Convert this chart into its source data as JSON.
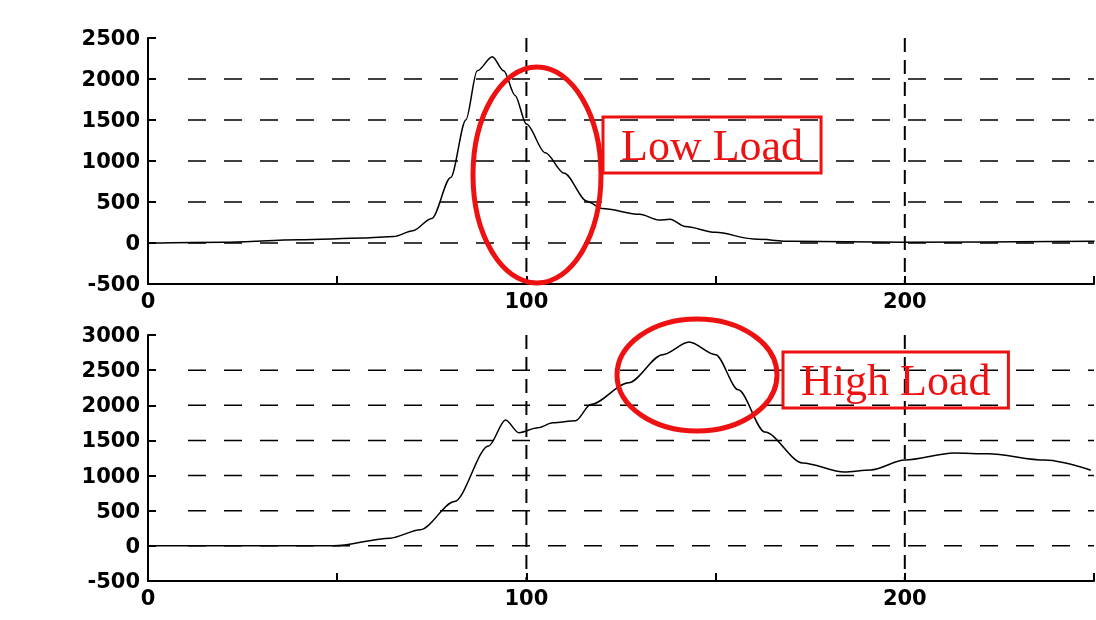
{
  "chart_data": [
    {
      "type": "line",
      "annotations": [
        "Low Load"
      ],
      "xlim": [
        0,
        250
      ],
      "xticks": [
        0,
        {
          "value": 50,
          "label": null
        },
        100,
        {
          "value": 150,
          "label": null
        },
        200,
        {
          "value": 250,
          "label": null
        }
      ],
      "ylim": [
        -500,
        2500
      ],
      "yticks": [
        -500,
        0,
        500,
        1000,
        1500,
        2000,
        2500
      ],
      "grid": true,
      "marker": "none",
      "line_style": "solid",
      "series": [
        {
          "color": "#000000",
          "x": [
            0,
            20,
            40,
            57,
            65,
            70,
            75,
            80,
            84,
            87,
            91,
            94,
            97,
            100,
            105,
            110,
            116,
            120,
            130,
            135,
            138,
            142,
            150,
            160,
            170,
            200,
            250
          ],
          "values": [
            0,
            10,
            40,
            60,
            80,
            150,
            300,
            800,
            1500,
            2100,
            2270,
            2100,
            1800,
            1450,
            1100,
            850,
            510,
            420,
            350,
            280,
            290,
            200,
            130,
            50,
            20,
            10,
            20
          ]
        }
      ]
    },
    {
      "type": "line",
      "annotations": [
        "High Load"
      ],
      "xlim": [
        0,
        250
      ],
      "xticks": [
        0,
        {
          "value": 50,
          "label": null
        },
        100,
        {
          "value": 150,
          "label": null
        },
        200,
        {
          "value": 250,
          "label": null
        }
      ],
      "ylim": [
        -500,
        3000
      ],
      "yticks": [
        -500,
        0,
        500,
        1000,
        1500,
        2000,
        2500,
        3000
      ],
      "grid": true,
      "marker": "none",
      "line_style": "solid",
      "series": [
        {
          "color": "#000000",
          "x": [
            0,
            30,
            49,
            64,
            72,
            81,
            90,
            94.5,
            98,
            103,
            107,
            113,
            117,
            127,
            136,
            143,
            150,
            156,
            163,
            173,
            184,
            191,
            200,
            213,
            222,
            237,
            249
          ],
          "values": [
            0,
            0,
            0,
            110,
            230,
            630,
            1420,
            1790,
            1610,
            1680,
            1750,
            1780,
            2010,
            2320,
            2720,
            2900,
            2720,
            2220,
            1620,
            1180,
            1050,
            1080,
            1220,
            1320,
            1310,
            1220,
            1080
          ]
        }
      ]
    }
  ]
}
